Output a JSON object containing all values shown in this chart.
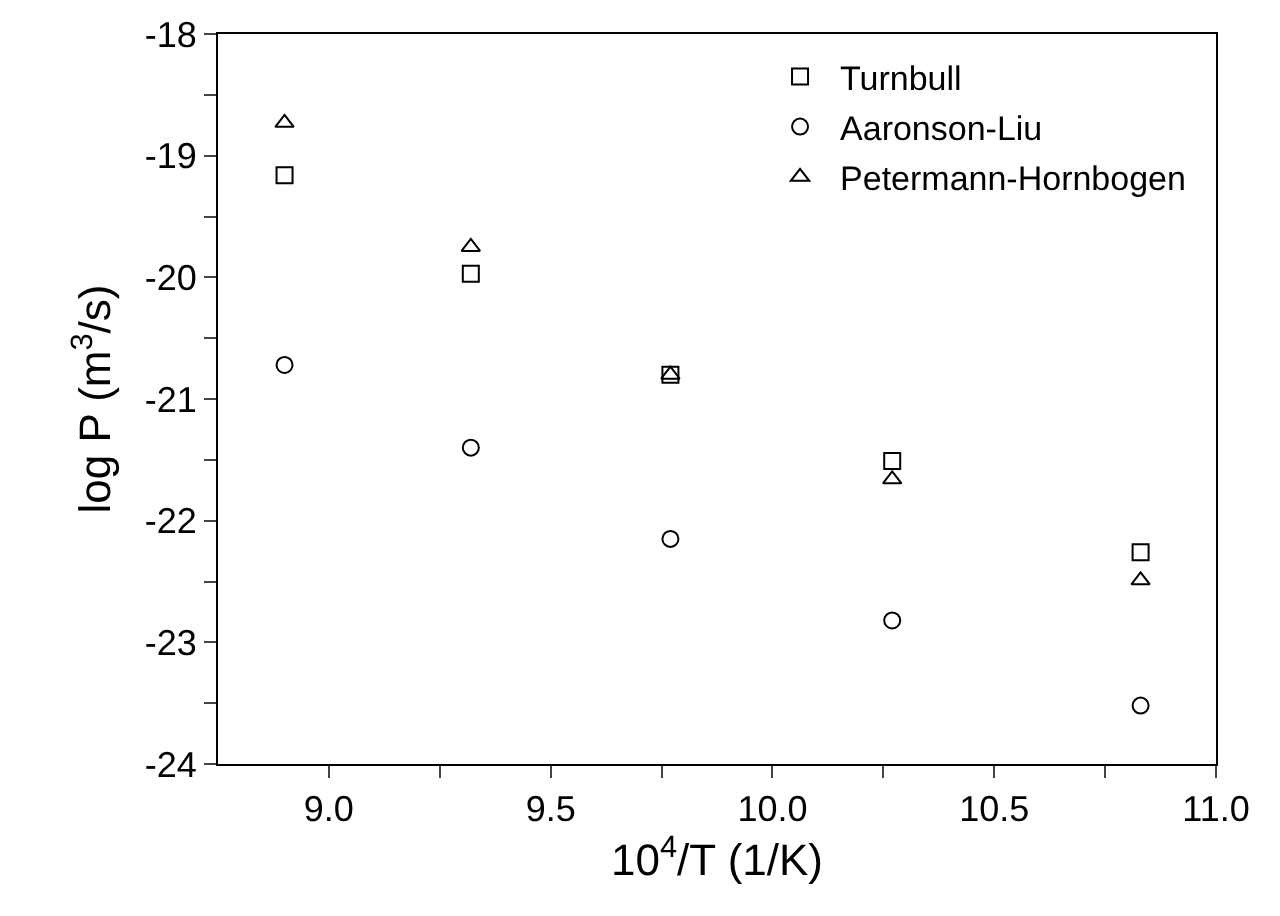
{
  "chart_data": {
    "type": "scatter",
    "xlabel": "10$^{4}$/T (1/K)",
    "ylabel": "log P (m$^{3}$/s)",
    "x": [
      8.9,
      9.32,
      9.77,
      10.27,
      10.83
    ],
    "series": [
      {
        "name": "Turnbull",
        "color": "#000000",
        "marker": "square",
        "values": [
          -19.16,
          -19.97,
          -20.8,
          -21.51,
          -22.26
        ]
      },
      {
        "name": "Aaronson-Liu",
        "color": "#000000",
        "marker": "circle",
        "values": [
          -20.72,
          -21.4,
          -22.15,
          -22.82,
          -23.52
        ]
      },
      {
        "name": "Petermann-Hornbogen",
        "color": "#000000",
        "marker": "triangle",
        "values": [
          -18.73,
          -19.75,
          -20.8,
          -21.66,
          -22.49
        ]
      }
    ],
    "xlim": [
      8.75,
      11.0
    ],
    "xticks": [
      {
        "value": 9,
        "label": "9.0"
      },
      {
        "value": 9.25,
        "label": null
      },
      9.5,
      {
        "value": 9.75,
        "label": null
      },
      {
        "value": 10,
        "label": "10.0"
      },
      {
        "value": 10.25,
        "label": null
      },
      10.5,
      {
        "value": 10.75,
        "label": null
      },
      {
        "value": 11,
        "label": "11.0"
      }
    ],
    "ylim": [
      -24,
      -18
    ],
    "yticks": [
      -24,
      {
        "value": -23.5,
        "label": null
      },
      -23,
      {
        "value": -22.5,
        "label": null
      },
      -22,
      {
        "value": -21.5,
        "label": null
      },
      -21,
      {
        "value": -20.5,
        "label": null
      },
      -20,
      {
        "value": -19.5,
        "label": null
      },
      -19,
      {
        "value": -18.5,
        "label": null
      },
      -18
    ],
    "grid": false,
    "legend": "top right"
  }
}
